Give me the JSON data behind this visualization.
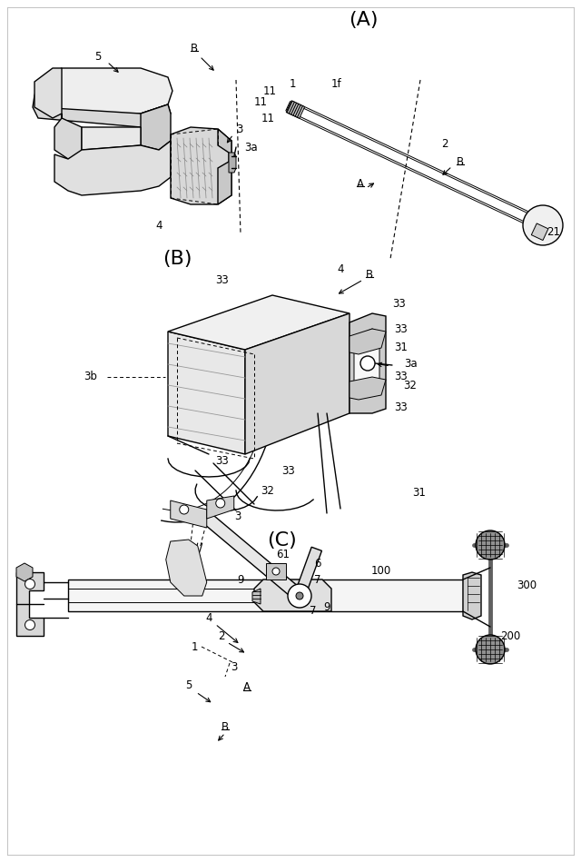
{
  "bg_color": "#ffffff",
  "line_color": "#000000",
  "fig_width": 6.4,
  "fig_height": 9.49,
  "dpi": 100,
  "border_color": "#cccccc",
  "label_A": "(A)",
  "label_B": "(B)",
  "label_C": "(C)",
  "gray_fill": "#e8e8e8",
  "light_fill": "#f2f2f2",
  "dark_fill": "#c0c0c0",
  "hatch_fill": "#d0d0d0"
}
